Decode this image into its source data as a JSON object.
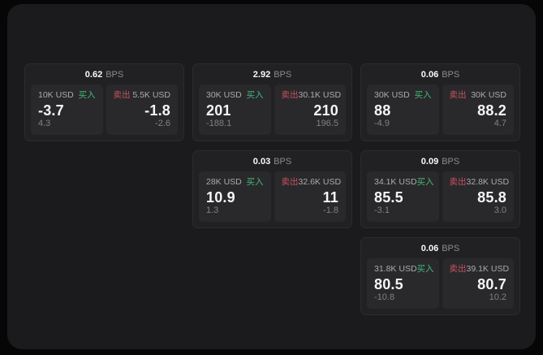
{
  "labels": {
    "bps_unit": "BPS",
    "buy": "买入",
    "sell": "卖出"
  },
  "colors": {
    "background": "#060607",
    "panel": "#1b1b1d",
    "card": "#212123",
    "subpanel": "#29292c",
    "buy_accent": "#46b877",
    "sell_accent": "#c9515b",
    "primary_text": "#f5f5f6",
    "muted_text": "#8b8b90"
  },
  "cards": [
    {
      "bps": "0.62",
      "buy": {
        "amount": "10K USD",
        "price": "-3.7",
        "change": "4.3"
      },
      "sell": {
        "amount": "5.5K USD",
        "price": "-1.8",
        "change": "-2.6"
      }
    },
    {
      "bps": "2.92",
      "buy": {
        "amount": "30K USD",
        "price": "201",
        "change": "-188.1"
      },
      "sell": {
        "amount": "30.1K USD",
        "price": "210",
        "change": "196.5"
      }
    },
    {
      "bps": "0.06",
      "buy": {
        "amount": "30K USD",
        "price": "88",
        "change": "-4.9"
      },
      "sell": {
        "amount": "30K USD",
        "price": "88.2",
        "change": "4.7"
      }
    },
    {
      "bps": "0.03",
      "buy": {
        "amount": "28K USD",
        "price": "10.9",
        "change": "1.3"
      },
      "sell": {
        "amount": "32.6K USD",
        "price": "11",
        "change": "-1.8"
      }
    },
    {
      "bps": "0.09",
      "buy": {
        "amount": "34.1K USD",
        "price": "85.5",
        "change": "-3.1"
      },
      "sell": {
        "amount": "32.8K USD",
        "price": "85.8",
        "change": "3.0"
      }
    },
    {
      "bps": "0.06",
      "buy": {
        "amount": "31.8K USD",
        "price": "80.5",
        "change": "-10.8"
      },
      "sell": {
        "amount": "39.1K USD",
        "price": "80.7",
        "change": "10.2"
      }
    }
  ]
}
